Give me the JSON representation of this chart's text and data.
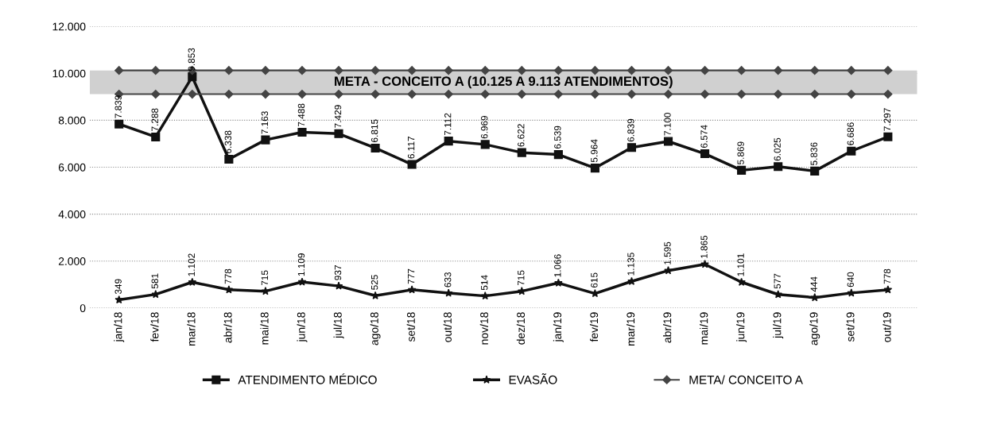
{
  "chart_data": {
    "type": "line",
    "categories": [
      "jan/18",
      "fev/18",
      "mar/18",
      "abr/18",
      "mai/18",
      "jun/18",
      "jul/18",
      "ago/18",
      "set/18",
      "out/18",
      "nov/18",
      "dez/18",
      "jan/19",
      "fev/19",
      "mar/19",
      "abr/19",
      "mai/19",
      "jun/19",
      "jul/19",
      "ago/19",
      "set/19",
      "out/19"
    ],
    "series": [
      {
        "name": "ATENDIMENTO MÉDICO",
        "color": "#111111",
        "marker": "square",
        "values": [
          7839,
          7288,
          9853,
          6338,
          7163,
          7488,
          7429,
          6815,
          6117,
          7112,
          6969,
          6622,
          6539,
          5964,
          6839,
          7100,
          6574,
          5869,
          6025,
          5836,
          6686,
          7297
        ],
        "value_labels": [
          "7.839",
          "7.288",
          "9.853",
          "6.338",
          "7.163",
          "7.488",
          "7.429",
          "6.815",
          "6.117",
          "7.112",
          "6.969",
          "6.622",
          "6.539",
          "5.964",
          "6.839",
          "7.100",
          "6.574",
          "5.869",
          "6.025",
          "5.836",
          "6.686",
          "7.297"
        ]
      },
      {
        "name": "EVASÃO",
        "color": "#111111",
        "marker": "star",
        "values": [
          349,
          581,
          1102,
          778,
          715,
          1109,
          937,
          525,
          777,
          633,
          514,
          715,
          1066,
          615,
          1135,
          1595,
          1865,
          1101,
          577,
          444,
          640,
          778
        ],
        "value_labels": [
          "349",
          "581",
          "1.102",
          "778",
          "715",
          "1.109",
          "937",
          "525",
          "777",
          "633",
          "514",
          "715",
          "1.066",
          "615",
          "1.135",
          "1.595",
          "1.865",
          "1.101",
          "577",
          "444",
          "640",
          "778"
        ]
      },
      {
        "name": "META/ CONCEITO A",
        "color": "#444444",
        "marker": "diamond",
        "values": [
          10125,
          10125,
          10125,
          10125,
          10125,
          10125,
          10125,
          10125,
          10125,
          10125,
          10125,
          10125,
          10125,
          10125,
          10125,
          10125,
          10125,
          10125,
          10125,
          10125,
          10125,
          10125
        ]
      },
      {
        "color": "#444444",
        "marker": "diamond",
        "values": [
          9113,
          9113,
          9113,
          9113,
          9113,
          9113,
          9113,
          9113,
          9113,
          9113,
          9113,
          9113,
          9113,
          9113,
          9113,
          9113,
          9113,
          9113,
          9113,
          9113,
          9113,
          9113
        ]
      }
    ],
    "bands": [
      {
        "axis": "y",
        "from": 9113,
        "to": 10125,
        "label": "META - CONCEITO A (10.125 A 9.113 ATENDIMENTOS)",
        "color": "#d0d0d0"
      }
    ],
    "ylim": [
      0,
      12000
    ],
    "yticks": [
      0,
      {
        "value": 2000,
        "label": "2.000"
      },
      {
        "value": 4000,
        "label": "4.000"
      },
      {
        "value": 6000,
        "label": "6.000"
      },
      {
        "value": 8000,
        "label": "8.000"
      },
      {
        "value": 10000,
        "label": "10.000"
      },
      {
        "value": 12000,
        "label": "12.000"
      }
    ],
    "grid": "y",
    "legend": "bottom"
  }
}
